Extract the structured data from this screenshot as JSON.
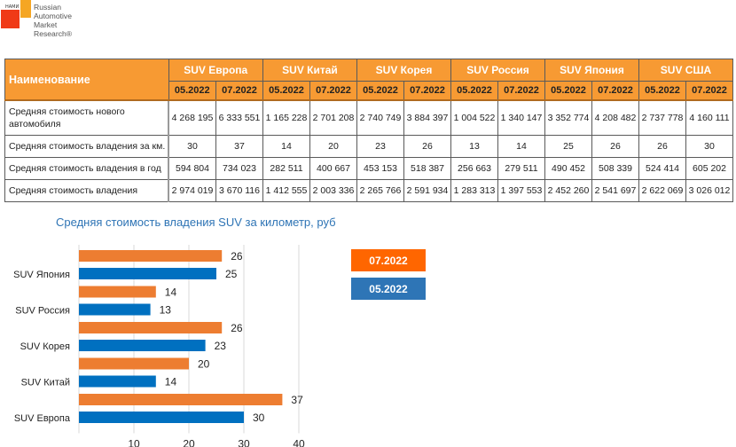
{
  "logo": {
    "badge": "НАМИ",
    "lines": [
      "Russian",
      "Automotive",
      "Market",
      "Research®"
    ]
  },
  "table": {
    "name_header": "Наименование",
    "groups": [
      "SUV Европа",
      "SUV Китай",
      "SUV Корея",
      "SUV Россия",
      "SUV Япония",
      "SUV США"
    ],
    "periods": [
      "05.2022",
      "07.2022"
    ],
    "rows": [
      {
        "label": "Средняя стоимость нового автомобиля",
        "values": [
          "4 268 195",
          "6 333 551",
          "1 165 228",
          "2 701 208",
          "2 740 749",
          "3 884 397",
          "1 004 522",
          "1 340 147",
          "3 352 774",
          "4 208 482",
          "2 737 778",
          "4 160 111"
        ]
      },
      {
        "label": "Средняя стоимость владения за км.",
        "values": [
          "30",
          "37",
          "14",
          "20",
          "23",
          "26",
          "13",
          "14",
          "25",
          "26",
          "26",
          "30"
        ]
      },
      {
        "label": "Средняя стоимость владения в год",
        "values": [
          "594 804",
          "734 023",
          "282 511",
          "400 667",
          "453 153",
          "518 387",
          "256 663",
          "279 511",
          "490 452",
          "508 339",
          "524 414",
          "605 202"
        ]
      },
      {
        "label": "Средняя стоимость владения",
        "values": [
          "2 974 019",
          "3 670 116",
          "1 412 555",
          "2 003 336",
          "2 265 766",
          "2 591 934",
          "1 283 313",
          "1 397 553",
          "2 452 260",
          "2 541 697",
          "2 622 069",
          "3 026 012"
        ]
      }
    ]
  },
  "chart_data": {
    "type": "bar",
    "orientation": "horizontal",
    "title": "Средняя стоимость владения SUV за километр, руб",
    "categories": [
      "SUV Япония",
      "SUV Россия",
      "SUV Корея",
      "SUV Китай",
      "SUV Европа"
    ],
    "series": [
      {
        "name": "07.2022",
        "color": "#ed7d31",
        "values": [
          26,
          14,
          26,
          20,
          37
        ]
      },
      {
        "name": "05.2022",
        "color": "#0070c0",
        "values": [
          25,
          13,
          23,
          14,
          30
        ]
      }
    ],
    "xlim": [
      0,
      40
    ],
    "xticks": [
      10,
      20,
      30,
      40
    ],
    "grid": true,
    "legend": {
      "position": "right",
      "items": [
        {
          "label": "07.2022",
          "color": "#ff6600"
        },
        {
          "label": "05.2022",
          "color": "#2e75b6"
        }
      ]
    }
  }
}
